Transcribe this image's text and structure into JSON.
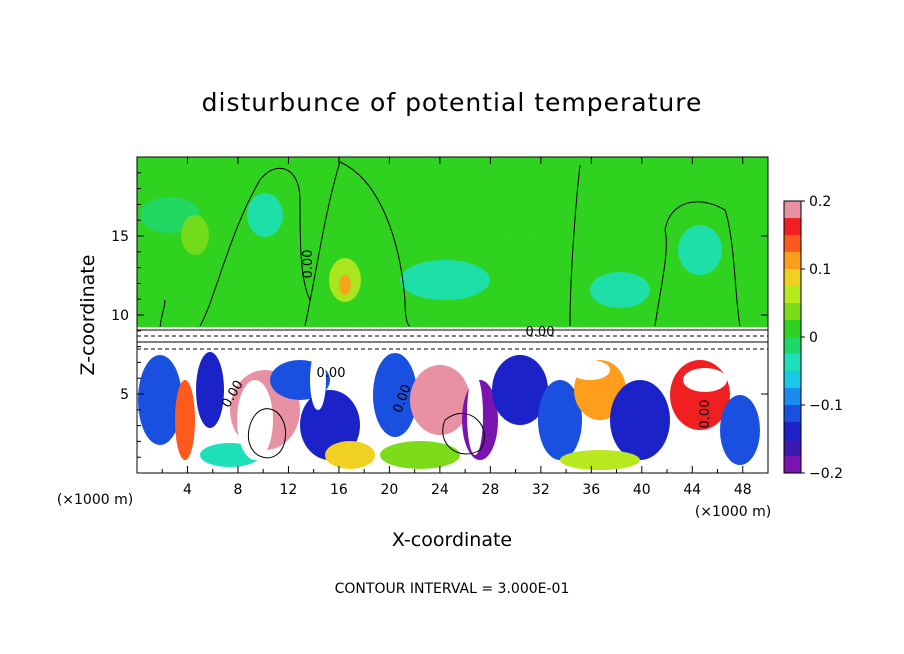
{
  "chart_data": {
    "type": "heatmap",
    "title": "disturbunce of potential temperature",
    "xlabel": "X-coordinate",
    "ylabel": "Z-coordinate",
    "x_unit_left": "(×1000 m)",
    "x_unit_right": "(×1000 m)",
    "xlim": [
      0,
      50
    ],
    "ylim": [
      0,
      20
    ],
    "x_ticks": [
      4,
      8,
      12,
      16,
      20,
      24,
      28,
      32,
      36,
      40,
      44,
      48
    ],
    "x_tick_labels": [
      "4",
      "8",
      "12",
      "16",
      "20",
      "24",
      "28",
      "32",
      "36",
      "40",
      "44",
      "48"
    ],
    "y_ticks": [
      5,
      10,
      15
    ],
    "y_tick_labels": [
      "5",
      "10",
      "15"
    ],
    "colorbar": {
      "range": [
        -0.2,
        0.2
      ],
      "tick_values": [
        0.2,
        0.1,
        0,
        -0.1,
        -0.2
      ],
      "tick_labels": [
        "0.2",
        "0.1",
        "0",
        "−0.1",
        "−0.2"
      ],
      "colors": [
        "#e891a3",
        "#f02020",
        "#ff5a1e",
        "#ff9d1c",
        "#f0d020",
        "#b8e81e",
        "#7cdc1a",
        "#2fd21e",
        "#20d86a",
        "#1ee0b8",
        "#18c8e8",
        "#1a8cf0",
        "#1a50e0",
        "#1a22c8",
        "#3a1ab0",
        "#7a14b0"
      ]
    },
    "contour_labels": [
      "0.00",
      "0.00",
      "0.00",
      "0.00",
      "0.00",
      "0.00"
    ],
    "footer": "CONTOUR INTERVAL = 3.000E-01",
    "grid": false
  }
}
